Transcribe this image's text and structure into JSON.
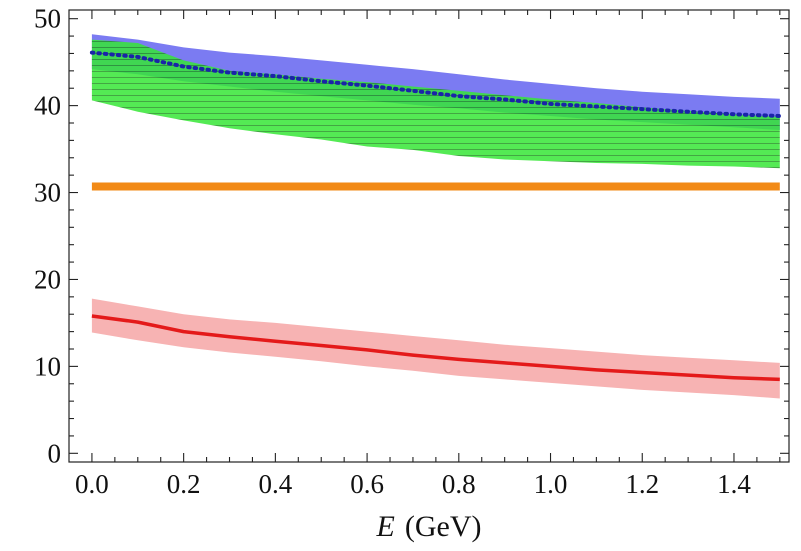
{
  "chart_data": {
    "type": "area",
    "title": "",
    "xlabel_var": "E",
    "xlabel_unit": "(GeV)",
    "ylabel": "",
    "xlim": [
      -0.05,
      1.52
    ],
    "ylim": [
      -1,
      51
    ],
    "grid": false,
    "x_ticks": [
      0.0,
      0.2,
      0.4,
      0.6,
      0.8,
      1.0,
      1.2,
      1.4
    ],
    "x_tick_labels": [
      "0.0",
      "0.2",
      "0.4",
      "0.6",
      "0.8",
      "1.0",
      "1.2",
      "1.4"
    ],
    "y_ticks": [
      0,
      10,
      20,
      30,
      40,
      50
    ],
    "y_tick_labels": [
      "0",
      "10",
      "20",
      "30",
      "40",
      "50"
    ],
    "x": [
      0.0,
      0.1,
      0.2,
      0.3,
      0.4,
      0.5,
      0.6,
      0.7,
      0.8,
      0.9,
      1.0,
      1.1,
      1.2,
      1.3,
      1.4,
      1.5
    ],
    "bands": [
      {
        "name": "blue band",
        "color": "#7b7bf2",
        "lower": [
          44.2,
          43.6,
          42.8,
          42.2,
          41.6,
          41.1,
          40.6,
          40.1,
          39.7,
          39.2,
          38.8,
          38.4,
          38.1,
          37.8,
          37.5,
          37.2
        ],
        "upper": [
          48.2,
          47.6,
          46.7,
          46.1,
          45.7,
          45.2,
          44.7,
          44.2,
          43.6,
          43.0,
          42.5,
          42.0,
          41.6,
          41.3,
          41.0,
          40.8
        ]
      },
      {
        "name": "green hatched band",
        "color": "#33e633",
        "lower": [
          40.6,
          39.3,
          38.3,
          37.4,
          36.7,
          36.1,
          35.3,
          34.9,
          34.2,
          33.8,
          33.6,
          33.4,
          33.3,
          33.1,
          33.0,
          32.8
        ],
        "upper": [
          47.6,
          47.2,
          45.2,
          44.0,
          43.6,
          43.1,
          42.7,
          42.2,
          41.7,
          41.2,
          40.7,
          40.3,
          39.8,
          39.4,
          39.0,
          38.7
        ]
      },
      {
        "name": "red band",
        "color": "#f7b3b3",
        "lower": [
          13.9,
          13.0,
          12.2,
          11.6,
          11.1,
          10.6,
          10.0,
          9.5,
          8.9,
          8.5,
          8.1,
          7.7,
          7.3,
          7.0,
          6.7,
          6.3
        ],
        "upper": [
          17.8,
          16.9,
          16.0,
          15.4,
          15.0,
          14.5,
          14.0,
          13.5,
          13.0,
          12.5,
          12.1,
          11.7,
          11.3,
          11.0,
          10.7,
          10.4
        ]
      }
    ],
    "series": [
      {
        "name": "blue dotted curve",
        "color": "#1a24a8",
        "style": "dotted",
        "values": [
          46.1,
          45.6,
          44.5,
          43.8,
          43.4,
          42.8,
          42.3,
          41.7,
          41.1,
          40.7,
          40.2,
          39.9,
          39.6,
          39.3,
          39.0,
          38.8
        ]
      },
      {
        "name": "red solid curve",
        "color": "#e41a1a",
        "style": "solid",
        "values": [
          15.8,
          15.1,
          14.0,
          13.4,
          12.9,
          12.4,
          11.9,
          11.3,
          10.8,
          10.4,
          10.0,
          9.6,
          9.3,
          9.0,
          8.7,
          8.5
        ]
      },
      {
        "name": "orange constant line",
        "color": "#f28a16",
        "style": "solid",
        "values": [
          30.7,
          30.7,
          30.7,
          30.7,
          30.7,
          30.7,
          30.7,
          30.7,
          30.7,
          30.7,
          30.7,
          30.7,
          30.7,
          30.7,
          30.7,
          30.7
        ]
      }
    ]
  }
}
